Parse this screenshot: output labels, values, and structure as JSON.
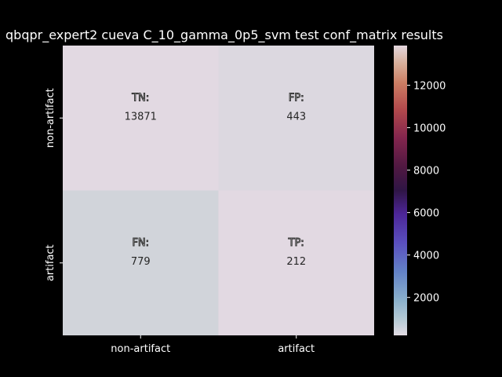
{
  "chart_data": {
    "type": "heatmap",
    "title": "qbqpr_expert2 cueva C_10_gamma_0p5_svm test conf_matrix results",
    "x_categories": [
      "non-artifact",
      "artifact"
    ],
    "y_categories": [
      "non-artifact",
      "artifact"
    ],
    "cells": [
      {
        "row": 0,
        "col": 0,
        "tag": "TN:",
        "value": 13871
      },
      {
        "row": 0,
        "col": 1,
        "tag": "FP:",
        "value": 443
      },
      {
        "row": 1,
        "col": 0,
        "tag": "FN:",
        "value": 779
      },
      {
        "row": 1,
        "col": 1,
        "tag": "TP:",
        "value": 212
      }
    ],
    "colorbar": {
      "colormap": "twilight",
      "ticks": [
        2000,
        4000,
        6000,
        8000,
        10000,
        12000
      ],
      "range": [
        212,
        13871
      ]
    },
    "background_color": "#000000",
    "text_color": "#ffffff",
    "cell_text_color": "#262626"
  }
}
